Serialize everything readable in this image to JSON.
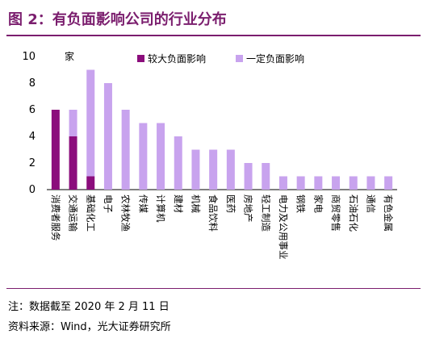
{
  "header": {
    "title": "图 2：有负面影响公司的行业分布"
  },
  "footer": {
    "note": "注：数据截至 2020 年 2 月 11 日",
    "source": "资料来源：Wind，光大证券研究所"
  },
  "colors": {
    "accent": "#7b1e6e",
    "series_major": "#8b0d7c",
    "series_minor": "#c8a3ee",
    "axis": "#000000"
  },
  "chart_data": {
    "type": "bar",
    "stacked": true,
    "ylabel": "家",
    "ylim": [
      0,
      10
    ],
    "yticks": [
      0,
      2,
      4,
      6,
      8,
      10
    ],
    "legend_position": "top",
    "categories": [
      "消费者服务",
      "交通运输",
      "基础化工",
      "电子",
      "农林牧渔",
      "传媒",
      "计算机",
      "建材",
      "机械",
      "食品饮料",
      "医药",
      "房地产",
      "轻工制造",
      "电力及公用事业",
      "钢铁",
      "家电",
      "商贸零售",
      "石油石化",
      "通信",
      "有色金属"
    ],
    "series": [
      {
        "name": "较大负面影响",
        "color": "#8b0d7c",
        "values": [
          6,
          4,
          1,
          0,
          0,
          0,
          0,
          0,
          0,
          0,
          0,
          0,
          0,
          0,
          0,
          0,
          0,
          0,
          0,
          0
        ]
      },
      {
        "name": "一定负面影响",
        "color": "#c8a3ee",
        "values": [
          0,
          2,
          8,
          8,
          6,
          5,
          5,
          4,
          3,
          3,
          3,
          2,
          2,
          1,
          1,
          1,
          1,
          1,
          1,
          1
        ]
      }
    ]
  }
}
